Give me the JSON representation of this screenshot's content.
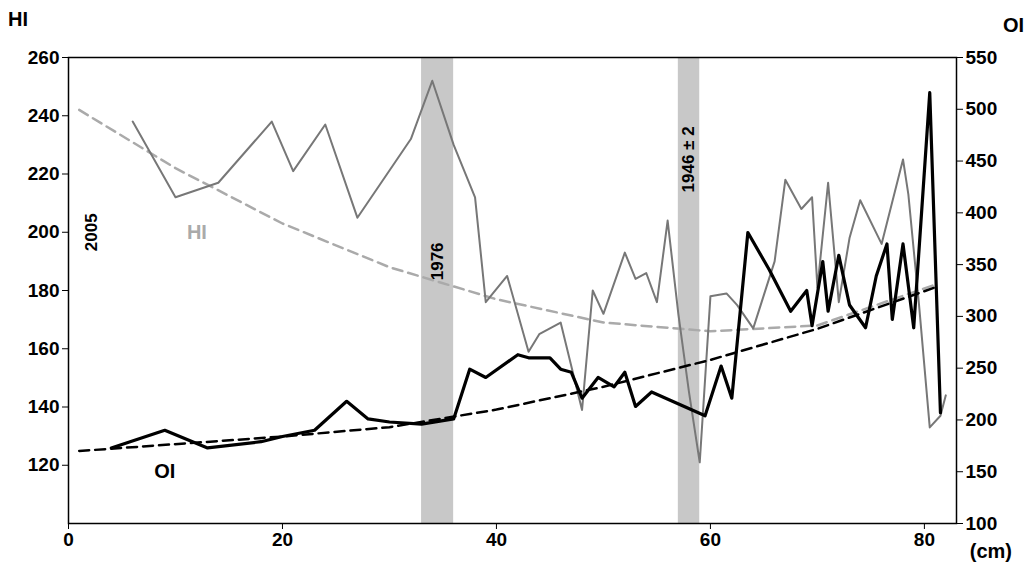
{
  "chart_data": {
    "type": "line",
    "xlabel": "(cm)",
    "ylabel": "HI",
    "y2label": "OI",
    "xlim": [
      0,
      83
    ],
    "xticks": [
      0,
      20,
      40,
      60,
      80
    ],
    "ylim": [
      100,
      260
    ],
    "yticks": [
      120,
      140,
      160,
      180,
      200,
      220,
      240,
      260
    ],
    "y2lim": [
      100,
      550
    ],
    "y2ticks": [
      100,
      150,
      200,
      250,
      300,
      350,
      400,
      450,
      500,
      550
    ],
    "grid": false,
    "series": [
      {
        "name": "HI",
        "color": "#777777",
        "line_style": "solid",
        "label_x": 12,
        "label_y": 200,
        "x": [
          6,
          10,
          14,
          19,
          21,
          24,
          27,
          32,
          34,
          36,
          38,
          39,
          41,
          43,
          44,
          46,
          48,
          49,
          50,
          52,
          53,
          54,
          55,
          56,
          57,
          58,
          59,
          60,
          61.5,
          62.5,
          64,
          66,
          67,
          68.5,
          69.5,
          70,
          71,
          72,
          73,
          74,
          76,
          78,
          78.5,
          79.5,
          80.5,
          81.5,
          82
        ],
        "values": [
          238,
          212,
          217,
          238,
          221,
          237,
          205,
          232,
          252,
          230,
          212,
          176,
          185,
          159,
          165,
          169,
          139,
          180,
          172,
          193,
          184,
          186,
          176,
          204,
          172,
          145,
          121,
          178,
          179,
          175,
          167,
          190,
          218,
          208,
          212,
          181,
          217,
          176,
          198,
          211,
          196,
          225,
          213,
          175,
          133,
          137,
          144
        ],
        "trend": {
          "color": "#aaaaaa",
          "line_style": "dashed",
          "x": [
            1,
            10,
            20,
            30,
            40,
            50,
            60,
            70,
            81
          ],
          "values": [
            242,
            222,
            203,
            188,
            177,
            169,
            166,
            168,
            182
          ]
        }
      },
      {
        "name": "OI",
        "color": "#000000",
        "axis": "y2",
        "line_style": "solid",
        "label_x": 9,
        "label_y": 150,
        "x": [
          4,
          9,
          13,
          18,
          20,
          23,
          26,
          28,
          30,
          33,
          36,
          37.5,
          39,
          42,
          43,
          45,
          46,
          47,
          48,
          49.5,
          51,
          52,
          53,
          54.5,
          59.5,
          61,
          62,
          63.5,
          65.5,
          67.5,
          69,
          69.5,
          70.5,
          71,
          72,
          73,
          74.5,
          75.5,
          76.5,
          77,
          78,
          79,
          80.5,
          81.5
        ],
        "values": [
          173,
          190,
          173,
          179,
          184,
          190,
          218,
          201,
          198,
          196,
          201,
          249,
          241,
          263,
          260,
          260,
          249,
          246,
          221,
          241,
          232,
          246,
          213,
          227,
          204,
          252,
          221,
          381,
          345,
          305,
          325,
          291,
          353,
          305,
          359,
          311,
          289,
          339,
          370,
          297,
          370,
          289,
          516,
          207
        ],
        "trend": {
          "color": "#000000",
          "line_style": "dashed",
          "x": [
            1,
            20,
            30,
            40,
            50,
            60,
            70,
            81
          ],
          "values": [
            170,
            184,
            193,
            210,
            232,
            258,
            288,
            328
          ]
        }
      }
    ],
    "bands": [
      {
        "x1": 33,
        "x2": 36,
        "label": "1976",
        "label_y": 190
      },
      {
        "x1": 57,
        "x2": 59,
        "label": "1946 ± 2",
        "label_y": 225
      }
    ],
    "annotations": [
      {
        "text": "2005",
        "x": 2.2,
        "y": 200
      }
    ]
  }
}
